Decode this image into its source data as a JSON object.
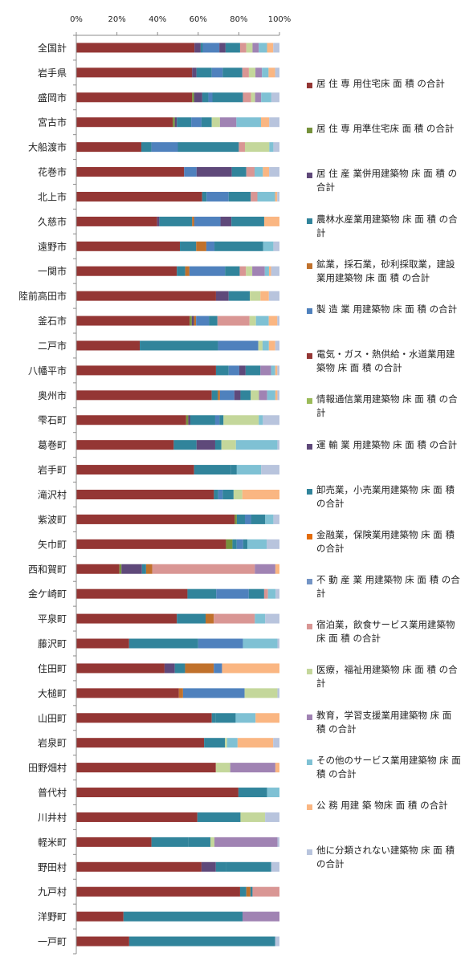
{
  "chart_data": {
    "type": "bar",
    "orientation": "horizontal",
    "stacked": "percent",
    "xlim": [
      0,
      100
    ],
    "x_ticks": [
      "0%",
      "20%",
      "40%",
      "60%",
      "80%",
      "100%"
    ],
    "categories": [
      "全国計",
      "岩手県",
      "盛岡市",
      "宮古市",
      "大船渡市",
      "花巻市",
      "北上市",
      "久慈市",
      "遠野市",
      "一関市",
      "陸前高田市",
      "釜石市",
      "二戸市",
      "八幡平市",
      "奥州市",
      "雫石町",
      "葛巻町",
      "岩手町",
      "滝沢村",
      "紫波町",
      "矢巾町",
      "西和賀町",
      "金ケ崎町",
      "平泉町",
      "藤沢町",
      "住田町",
      "大槌町",
      "山田町",
      "岩泉町",
      "田野畑村",
      "普代村",
      "川井村",
      "軽米町",
      "野田村",
      "九戸村",
      "洋野町",
      "一戸町"
    ],
    "series": [
      {
        "name": "居 住 専 用住宅床 面 積 の合計",
        "color": "#943634",
        "values": [
          57,
          53,
          57,
          47,
          32,
          52,
          57,
          37,
          51,
          48,
          66,
          53,
          30,
          66,
          66,
          53,
          47,
          58,
          63,
          78,
          70,
          21,
          58,
          49,
          26,
          43,
          50,
          68,
          61,
          68,
          79,
          59,
          37,
          61,
          79,
          23,
          25
        ]
      },
      {
        "name": "居 住 専 用準住宅床 面 積 の合計",
        "color": "#76923c",
        "values": [
          0,
          0,
          1,
          1,
          0,
          0,
          0,
          0,
          0,
          0,
          0,
          1,
          0,
          0,
          0,
          1,
          0,
          0,
          0,
          1,
          3,
          1,
          0,
          0,
          0,
          0,
          0,
          0,
          0,
          0,
          0,
          0,
          0,
          0,
          0,
          0,
          0
        ]
      },
      {
        "name": "居 住 産 業併用建築物 床 面 積 の合計",
        "color": "#5f497a",
        "values": [
          3,
          2,
          4,
          1,
          0,
          0,
          0,
          1,
          0,
          0,
          6,
          1,
          0,
          0,
          0,
          1,
          0,
          0,
          0,
          0,
          0,
          10,
          0,
          0,
          0,
          5,
          0,
          0,
          0,
          0,
          0,
          0,
          0,
          7,
          0,
          0,
          0
        ]
      },
      {
        "name": "農林水産業用建築物 床 面 積 の合計",
        "color": "#31849b",
        "values": [
          1,
          7,
          3,
          7,
          5,
          0,
          2,
          15,
          8,
          4,
          10,
          0,
          37,
          6,
          3,
          12,
          11,
          18,
          2,
          4,
          2,
          2,
          15,
          14,
          34,
          5,
          0,
          2,
          10,
          0,
          14,
          21,
          18,
          5,
          3,
          49,
          69
        ]
      },
      {
        "name": "鉱業，採石業，砂利採取業，建設業用建築物 床 面 積 の合計",
        "color": "#c0712c",
        "values": [
          0,
          0,
          0,
          0,
          0,
          0,
          0,
          1,
          5,
          2,
          0,
          1,
          0,
          0,
          1,
          0,
          0,
          0,
          0,
          0,
          0,
          3,
          0,
          4,
          0,
          14,
          2,
          0,
          0,
          0,
          0,
          0,
          0,
          0,
          2,
          0,
          0
        ]
      },
      {
        "name": "製 造 業 用建築物 床 面 積 の合計",
        "color": "#4f81bd",
        "values": [
          8,
          5,
          2,
          5,
          13,
          6,
          10,
          12,
          4,
          17,
          0,
          6,
          19,
          5,
          7,
          2,
          0,
          0,
          2,
          3,
          3,
          0,
          17,
          0,
          22,
          4,
          30,
          0,
          0,
          0,
          0,
          0,
          0,
          0,
          0,
          0,
          0
        ]
      },
      {
        "name": "電気・ガス・熱供給・水道業用建築物 床 面 積 の合計",
        "color": "#943634",
        "values": [
          0,
          0,
          0,
          0,
          0,
          0,
          0,
          0,
          0,
          0,
          0,
          0,
          0,
          0,
          0,
          0,
          0,
          0,
          0,
          0,
          0,
          0,
          0,
          0,
          0,
          0,
          0,
          0,
          0,
          0,
          0,
          0,
          0,
          0,
          0,
          0,
          0
        ]
      },
      {
        "name": "情報通信業用建築物 床 面 積 の合計",
        "color": "#9bbb59",
        "values": [
          0,
          0,
          0,
          0,
          0,
          0,
          0,
          0,
          0,
          0,
          0,
          0,
          0,
          0,
          0,
          0,
          0,
          0,
          0,
          0,
          0,
          0,
          0,
          0,
          0,
          0,
          0,
          0,
          0,
          0,
          0,
          0,
          0,
          0,
          0,
          0,
          0
        ]
      },
      {
        "name": "運 輸 業 用建築物 床 面 積 の合計",
        "color": "#5f497a",
        "values": [
          3,
          0,
          0,
          0,
          0,
          17,
          0,
          5,
          0,
          0,
          0,
          0,
          0,
          3,
          3,
          0,
          9,
          0,
          0,
          0,
          0,
          0,
          0,
          0,
          0,
          0,
          0,
          0,
          0,
          0,
          0,
          0,
          0,
          0,
          0,
          0,
          0
        ]
      },
      {
        "name": "卸売業，小売業用建築物 床 面 積 の合計",
        "color": "#31849b",
        "values": [
          7,
          9,
          15,
          5,
          30,
          7,
          10,
          15,
          24,
          7,
          0,
          4,
          0,
          7,
          5,
          2,
          3,
          3,
          5,
          7,
          2,
          0,
          8,
          0,
          0,
          0,
          0,
          10,
          0,
          0,
          0,
          0,
          11,
          22,
          1,
          9,
          0
        ]
      },
      {
        "name": "金融業，保険業用建築物 床 面 積 の合計",
        "color": "#e46c0a",
        "values": [
          0,
          0,
          0,
          0,
          0,
          0,
          0,
          0,
          0,
          0,
          0,
          0,
          0,
          0,
          0,
          0,
          0,
          0,
          0,
          0,
          0,
          0,
          0,
          0,
          0,
          0,
          0,
          0,
          0,
          0,
          0,
          0,
          0,
          0,
          0,
          0,
          0
        ]
      },
      {
        "name": "不 動 産 業 用建築物 床 面 積 の合計",
        "color": "#7394c5",
        "values": [
          0,
          0,
          0,
          0,
          0,
          0,
          0,
          0,
          0,
          0,
          0,
          0,
          0,
          0,
          0,
          0,
          0,
          0,
          0,
          0,
          0,
          0,
          0,
          0,
          0,
          0,
          0,
          0,
          0,
          0,
          0,
          0,
          0,
          0,
          0,
          0,
          0
        ]
      },
      {
        "name": "宿泊業，飲食サービス業用建築物 床 面 積 の合計",
        "color": "#d99694",
        "values": [
          3,
          3,
          4,
          0,
          3,
          4,
          3,
          0,
          0,
          3,
          0,
          15,
          0,
          0,
          0,
          0,
          0,
          0,
          0,
          0,
          0,
          50,
          2,
          20,
          0,
          0,
          0,
          0,
          0,
          0,
          0,
          0,
          0,
          0,
          13,
          0,
          0
        ]
      },
      {
        "name": "医療，福祉用建築物 床 面 積 の合計",
        "color": "#c4d79b",
        "values": [
          3,
          3,
          2,
          4,
          12,
          0,
          0,
          0,
          0,
          3,
          5,
          3,
          2,
          0,
          4,
          17,
          7,
          0,
          4,
          0,
          0,
          0,
          0,
          0,
          0,
          0,
          16,
          0,
          1,
          7,
          0,
          12,
          2,
          0,
          0,
          0,
          0
        ]
      },
      {
        "name": "教育，学習支援業用建築物 床 面 積 の合計",
        "color": "#a083b3",
        "values": [
          3,
          3,
          3,
          8,
          0,
          0,
          0,
          0,
          0,
          6,
          0,
          0,
          0,
          5,
          4,
          0,
          0,
          0,
          0,
          0,
          0,
          10,
          0,
          0,
          0,
          0,
          0,
          0,
          0,
          22,
          0,
          0,
          31,
          0,
          0,
          18,
          0
        ]
      },
      {
        "name": "その他のサービス業用建築物 床 面 積 の合計",
        "color": "#7fc1d4",
        "values": [
          4,
          3,
          5,
          12,
          2,
          4,
          8,
          0,
          5,
          2,
          0,
          6,
          3,
          2,
          4,
          2,
          20,
          12,
          0,
          4,
          9,
          0,
          4,
          5,
          17,
          0,
          0,
          10,
          5,
          0,
          6,
          0,
          0,
          0,
          0,
          0,
          0
        ]
      },
      {
        "name": "公 務 用建 築 物床 面 積 の合計",
        "color": "#fab682",
        "values": [
          3,
          3,
          0,
          4,
          0,
          3,
          1,
          7,
          0,
          1,
          4,
          4,
          3,
          1,
          1,
          0,
          0,
          0,
          17,
          0,
          0,
          2,
          0,
          0,
          0,
          28,
          0,
          12,
          17,
          2,
          0,
          0,
          0,
          0,
          0,
          0,
          0
        ]
      },
      {
        "name": "他に分類されない建築物 床 面 積の合計",
        "color": "#b8c4dd",
        "values": [
          3,
          2,
          4,
          5,
          3,
          5,
          1,
          0,
          3,
          4,
          5,
          1,
          2,
          1,
          1,
          8,
          1,
          9,
          0,
          3,
          6,
          0,
          2,
          7,
          1,
          0,
          1,
          0,
          3,
          0,
          0,
          7,
          1,
          4,
          0,
          0,
          2
        ]
      }
    ]
  }
}
